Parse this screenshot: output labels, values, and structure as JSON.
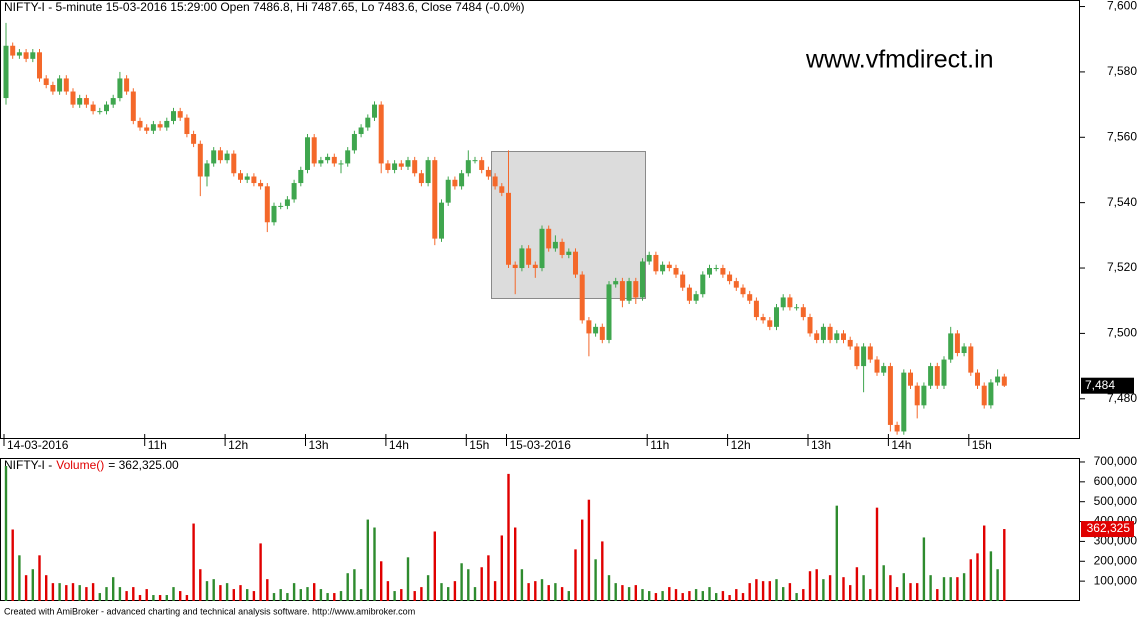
{
  "chart_data": {
    "type": "candlestick",
    "title": "NIFTY-I - 5-minute 15-03-2016 15:29:00 Open 7486.8, Hi 7487.65, Lo 7483.6, Close 7484 (-0.0%)",
    "watermark": "www.vfmdirect.in",
    "footer": "Created with AmiBroker - advanced charting and technical analysis software. http://www.amibroker.com",
    "xticks": [
      {
        "value": 0,
        "label": "14-03-2016"
      },
      {
        "value": 21,
        "label": "11h"
      },
      {
        "value": 33,
        "label": "12h"
      },
      {
        "value": 45,
        "label": "13h"
      },
      {
        "value": 57,
        "label": "14h"
      },
      {
        "value": 69,
        "label": "15h"
      },
      {
        "value": 75,
        "label": "15-03-2016"
      },
      {
        "value": 96,
        "label": "11h"
      },
      {
        "value": 108,
        "label": "12h"
      },
      {
        "value": 120,
        "label": "13h"
      },
      {
        "value": 132,
        "label": "14h"
      },
      {
        "value": 144,
        "label": "15h"
      }
    ],
    "open": [
      7572,
      7588,
      7585,
      7586,
      7584,
      7586,
      7578,
      7576,
      7574,
      7578,
      7574,
      7570,
      7572,
      7570,
      7568,
      7568,
      7570,
      7572,
      7578,
      7574,
      7565,
      7563,
      7562,
      7564,
      7563,
      7565,
      7568,
      7566,
      7561,
      7558,
      7548,
      7552,
      7556,
      7553,
      7555,
      7549,
      7547,
      7548,
      7546,
      7545,
      7534,
      7539,
      7539,
      7541,
      7546,
      7550,
      7560,
      7552,
      7553,
      7554,
      7552,
      7552,
      7556,
      7561,
      7563,
      7566,
      7570,
      7552,
      7550,
      7552,
      7551,
      7553,
      7549,
      7546,
      7553,
      7529,
      7540,
      7547,
      7545,
      7549,
      7553,
      7553,
      7550,
      7548,
      7545,
      7543,
      7521,
      7520,
      7526,
      7521,
      7520,
      7532,
      7526,
      7528,
      7524,
      7525,
      7518,
      7504,
      7500,
      7502,
      7498,
      7515,
      7516,
      7510,
      7516,
      7511,
      7522,
      7524,
      7519,
      7521,
      7520,
      7518,
      7514,
      7510,
      7512,
      7518,
      7520,
      7520,
      7518,
      7516,
      7514,
      7512,
      7510,
      7505,
      7504,
      7502,
      7508,
      7511,
      7508,
      7508,
      7505,
      7500,
      7498,
      7502,
      7498,
      7500,
      7498,
      7496,
      7490,
      7496,
      7492,
      7488,
      7490,
      7472,
      7470,
      7488,
      7484,
      7478,
      7484,
      7490,
      7484,
      7492,
      7500,
      7494,
      7496,
      7488,
      7484,
      7478,
      7485,
      7486.8
    ],
    "high": [
      7595,
      7589,
      7587,
      7587,
      7587,
      7587,
      7579,
      7577,
      7579,
      7579,
      7575,
      7573,
      7573,
      7571,
      7569,
      7571,
      7573,
      7580,
      7579,
      7575,
      7566,
      7564,
      7565,
      7565,
      7566,
      7569,
      7569,
      7567,
      7562,
      7559,
      7553,
      7557,
      7557,
      7556,
      7556,
      7550,
      7549,
      7549,
      7547,
      7546,
      7540,
      7540,
      7542,
      7547,
      7551,
      7561,
      7561,
      7554,
      7555,
      7555,
      7553,
      7557,
      7562,
      7564,
      7567,
      7571,
      7571,
      7553,
      7553,
      7553,
      7554,
      7554,
      7550,
      7554,
      7554,
      7541,
      7548,
      7548,
      7550,
      7556,
      7554,
      7554,
      7551,
      7549,
      7546,
      7556,
      7522,
      7527,
      7527,
      7522,
      7533,
      7533,
      7530,
      7529,
      7526,
      7526,
      7519,
      7505,
      7503,
      7503,
      7516,
      7517,
      7517,
      7517,
      7517,
      7523,
      7525,
      7525,
      7522,
      7522,
      7521,
      7519,
      7515,
      7513,
      7519,
      7521,
      7521,
      7521,
      7519,
      7517,
      7515,
      7513,
      7511,
      7506,
      7505,
      7509,
      7512,
      7512,
      7509,
      7509,
      7506,
      7501,
      7503,
      7503,
      7501,
      7501,
      7499,
      7497,
      7497,
      7497,
      7493,
      7491,
      7491,
      7473,
      7489,
      7489,
      7485,
      7485,
      7491,
      7491,
      7493,
      7502,
      7501,
      7497,
      7497,
      7489,
      7485,
      7486,
      7489,
      7487.65
    ],
    "low": [
      7570,
      7584,
      7584,
      7583,
      7583,
      7577,
      7575,
      7573,
      7573,
      7573,
      7569,
      7569,
      7569,
      7567,
      7567,
      7567,
      7569,
      7571,
      7573,
      7564,
      7562,
      7561,
      7561,
      7562,
      7562,
      7564,
      7565,
      7560,
      7557,
      7542,
      7545,
      7551,
      7552,
      7552,
      7548,
      7546,
      7546,
      7545,
      7544,
      7531,
      7533,
      7538,
      7538,
      7540,
      7545,
      7549,
      7551,
      7551,
      7552,
      7551,
      7549,
      7551,
      7555,
      7560,
      7562,
      7565,
      7549,
      7549,
      7549,
      7550,
      7550,
      7548,
      7545,
      7545,
      7527,
      7528,
      7539,
      7544,
      7544,
      7548,
      7552,
      7549,
      7547,
      7544,
      7542,
      7520,
      7512,
      7519,
      7520,
      7517,
      7519,
      7525,
      7525,
      7523,
      7523,
      7517,
      7503,
      7493,
      7499,
      7497,
      7497,
      7514,
      7508,
      7509,
      7509,
      7510,
      7521,
      7518,
      7518,
      7519,
      7517,
      7513,
      7509,
      7509,
      7511,
      7517,
      7519,
      7517,
      7515,
      7513,
      7511,
      7509,
      7504,
      7503,
      7501,
      7501,
      7507,
      7507,
      7507,
      7504,
      7499,
      7497,
      7497,
      7497,
      7497,
      7497,
      7495,
      7489,
      7482,
      7491,
      7487,
      7487,
      7470,
      7469,
      7469,
      7483,
      7474,
      7477,
      7483,
      7483,
      7483,
      7491,
      7493,
      7493,
      7487,
      7483,
      7477,
      7477,
      7484,
      7483.6
    ],
    "close": [
      7588,
      7585,
      7586,
      7584,
      7586,
      7578,
      7576,
      7574,
      7578,
      7574,
      7570,
      7572,
      7570,
      7568,
      7568,
      7570,
      7572,
      7578,
      7574,
      7565,
      7563,
      7562,
      7564,
      7563,
      7565,
      7568,
      7566,
      7561,
      7558,
      7548,
      7552,
      7556,
      7553,
      7555,
      7549,
      7547,
      7548,
      7546,
      7545,
      7534,
      7539,
      7539,
      7541,
      7546,
      7550,
      7560,
      7552,
      7553,
      7554,
      7552,
      7552,
      7556,
      7561,
      7563,
      7566,
      7570,
      7552,
      7550,
      7552,
      7551,
      7553,
      7549,
      7546,
      7553,
      7529,
      7540,
      7547,
      7545,
      7549,
      7553,
      7553,
      7550,
      7548,
      7545,
      7543,
      7521,
      7520,
      7526,
      7521,
      7520,
      7532,
      7526,
      7528,
      7524,
      7525,
      7518,
      7504,
      7500,
      7502,
      7498,
      7515,
      7516,
      7510,
      7516,
      7511,
      7522,
      7524,
      7519,
      7521,
      7520,
      7518,
      7514,
      7510,
      7512,
      7518,
      7520,
      7520,
      7518,
      7516,
      7514,
      7512,
      7510,
      7505,
      7504,
      7502,
      7508,
      7511,
      7508,
      7508,
      7505,
      7500,
      7498,
      7502,
      7498,
      7500,
      7498,
      7496,
      7490,
      7496,
      7492,
      7488,
      7490,
      7472,
      7470,
      7488,
      7484,
      7478,
      7484,
      7490,
      7484,
      7492,
      7500,
      7494,
      7496,
      7488,
      7484,
      7478,
      7485,
      7486.8,
      7484
    ],
    "up_color": "#3fa64e",
    "down_color": "#f4682a",
    "ylim": [
      7468,
      7602
    ],
    "yticks": [
      {
        "value": 7480,
        "label": "7,480"
      },
      {
        "value": 7500,
        "label": "7,500"
      },
      {
        "value": 7520,
        "label": "7,520"
      },
      {
        "value": 7540,
        "label": "7,540"
      },
      {
        "value": 7560,
        "label": "7,560"
      },
      {
        "value": 7580,
        "label": "7,580"
      },
      {
        "value": 7600,
        "label": "7,600"
      }
    ],
    "last": {
      "value": 7484,
      "label": "7,484"
    },
    "volume": {
      "title": [
        "NIFTY-I -",
        "Volume()",
        "= 362,325.00"
      ],
      "values": [
        680000,
        360000,
        230000,
        130000,
        160000,
        230000,
        130000,
        90000,
        90000,
        80000,
        90000,
        80000,
        70000,
        90000,
        40000,
        70000,
        120000,
        70000,
        50000,
        70000,
        30000,
        60000,
        30000,
        30000,
        30000,
        70000,
        50000,
        30000,
        390000,
        160000,
        100000,
        110000,
        80000,
        90000,
        60000,
        80000,
        60000,
        50000,
        290000,
        110000,
        40000,
        60000,
        40000,
        90000,
        60000,
        70000,
        90000,
        60000,
        40000,
        40000,
        50000,
        140000,
        160000,
        60000,
        410000,
        370000,
        200000,
        100000,
        50000,
        60000,
        220000,
        50000,
        70000,
        130000,
        350000,
        90000,
        70000,
        100000,
        190000,
        160000,
        70000,
        170000,
        230000,
        100000,
        330000,
        640000,
        370000,
        160000,
        90000,
        100000,
        110000,
        80000,
        90000,
        70000,
        50000,
        260000,
        410000,
        510000,
        210000,
        300000,
        130000,
        90000,
        80000,
        70000,
        80000,
        60000,
        50000,
        40000,
        50000,
        70000,
        60000,
        40000,
        50000,
        60000,
        50000,
        70000,
        40000,
        50000,
        30000,
        60000,
        40000,
        90000,
        110000,
        100000,
        100000,
        110000,
        70000,
        90000,
        40000,
        60000,
        150000,
        160000,
        110000,
        130000,
        480000,
        120000,
        80000,
        170000,
        130000,
        60000,
        470000,
        180000,
        130000,
        70000,
        140000,
        90000,
        90000,
        320000,
        130000,
        60000,
        120000,
        120000,
        120000,
        140000,
        210000,
        240000,
        380000,
        250000,
        160000,
        362325
      ],
      "up_color": "#2e8b2e",
      "down_color": "#e00000",
      "ylim": [
        0,
        720000
      ],
      "yticks": [
        {
          "value": 100000,
          "label": "100,000"
        },
        {
          "value": 200000,
          "label": "200,000"
        },
        {
          "value": 300000,
          "label": "300,000"
        },
        {
          "value": 400000,
          "label": "400,000"
        },
        {
          "value": 500000,
          "label": "500,000"
        },
        {
          "value": 600000,
          "label": "600,000"
        },
        {
          "value": 700000,
          "label": "700,000"
        }
      ],
      "last": {
        "value": 362325,
        "label": "362,325"
      }
    }
  }
}
